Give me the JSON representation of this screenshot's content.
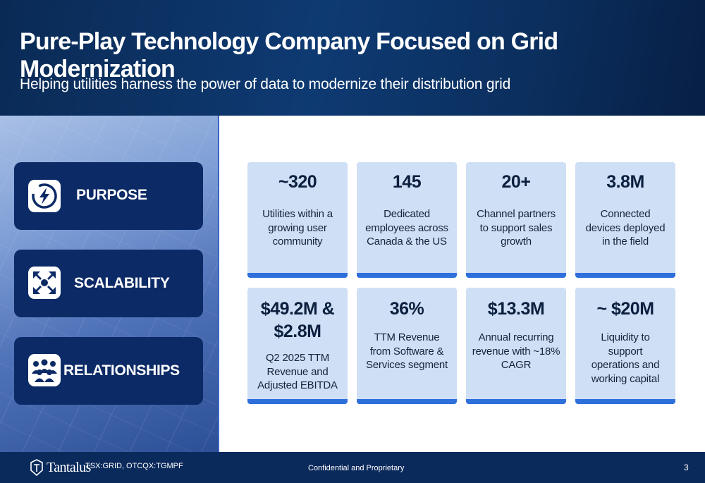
{
  "header": {
    "title": "Pure-Play Technology Company Focused on Grid Modernization",
    "subtitle": "Helping utilities harness the power of data to modernize their distribution grid"
  },
  "pillars": [
    {
      "label": "PURPOSE",
      "icon": "lightning-bolt-icon"
    },
    {
      "label": "SCALABILITY",
      "icon": "expand-arrows-icon"
    },
    {
      "label": "RELATIONSHIPS",
      "icon": "people-group-icon"
    }
  ],
  "cards": [
    {
      "metric": "~320",
      "desc": [
        "Utilities within a",
        "growing user",
        "community"
      ]
    },
    {
      "metric": "145",
      "desc": [
        "Dedicated",
        "employees across",
        "Canada & the US"
      ]
    },
    {
      "metric": "20+",
      "desc": [
        "Channel partners",
        "to support sales",
        "growth"
      ]
    },
    {
      "metric": "3.8M",
      "desc": [
        "Connected",
        "devices deployed",
        "in the field"
      ]
    },
    {
      "metric": [
        "$49.2M &",
        "$2.8M"
      ],
      "desc": [
        "Q2 2025 TTM",
        "Revenue and",
        "Adjusted EBITDA"
      ]
    },
    {
      "metric": "36%",
      "desc": [
        "TTM Revenue",
        "from Software &",
        "Services segment"
      ]
    },
    {
      "metric": "$13.3M",
      "desc": [
        "Annual recurring",
        "revenue with ~18%",
        "CAGR"
      ]
    },
    {
      "metric": "~ $20M",
      "desc": [
        "Liquidity to",
        "support",
        "operations and",
        "working capital"
      ]
    }
  ],
  "footer": {
    "logo_text": "Tantalus",
    "ticker": "TSX:GRID, OTCQX:TGMPF",
    "confidential": "Confidential and Proprietary",
    "page_number": "3"
  },
  "colors": {
    "header_navy": "#0e3a72",
    "pill_navy": "#0c2a66",
    "card_fill": "#cfdff5",
    "card_accent": "#2f6fdc"
  }
}
